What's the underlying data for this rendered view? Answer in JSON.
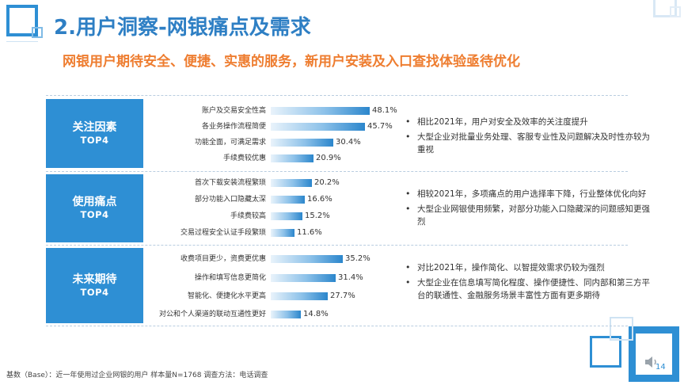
{
  "header": {
    "title": "2.用户洞察-网银痛点及需求",
    "subtitle": "网银用户期待安全、便捷、实惠的服务，新用户安装及入口查找体验亟待优化"
  },
  "sections": [
    {
      "title": "关注因素",
      "subtitle": "TOP4",
      "bars": [
        {
          "label": "账户及交易安全性高",
          "value": 48.1,
          "value_text": "48.1%"
        },
        {
          "label": "各业务操作流程简便",
          "value": 45.7,
          "value_text": "45.7%"
        },
        {
          "label": "功能全面，可满足需求",
          "value": 30.4,
          "value_text": "30.4%"
        },
        {
          "label": "手续费较优惠",
          "value": 20.9,
          "value_text": "20.9%"
        }
      ],
      "notes": [
        "相比2021年，用户对安全及效率的关注度提升",
        "大型企业对批量业务处理、客服专业性及问题解决及时性亦较为重视"
      ]
    },
    {
      "title": "使用痛点",
      "subtitle": "TOP4",
      "bars": [
        {
          "label": "首次下载安装流程繁琐",
          "value": 20.2,
          "value_text": "20.2%"
        },
        {
          "label": "部分功能入口隐藏太深",
          "value": 16.6,
          "value_text": "16.6%"
        },
        {
          "label": "手续费较高",
          "value": 15.2,
          "value_text": "15.2%"
        },
        {
          "label": "交易过程安全认证手段繁琐",
          "value": 11.6,
          "value_text": "11.6%"
        }
      ],
      "notes": [
        "相较2021年，多项痛点的用户选择率下降，行业整体优化向好",
        "大型企业网银使用频繁，对部分功能入口隐藏深的问题感知更强烈"
      ]
    },
    {
      "title": "未来期待",
      "subtitle": "TOP4",
      "bars": [
        {
          "label": "收费项目更少，资费更优惠",
          "value": 35.2,
          "value_text": "35.2%"
        },
        {
          "label": "操作和填写信息更简化",
          "value": 31.4,
          "value_text": "31.4%"
        },
        {
          "label": "智能化、便捷化水平更高",
          "value": 27.7,
          "value_text": "27.7%"
        },
        {
          "label": "对公和个人渠道的联动互通性更好",
          "value": 14.8,
          "value_text": "14.8%"
        }
      ],
      "notes": [
        "对比2021年，操作简化、以智提效需求仍较为强烈",
        "大型企业在信息填写简化程度、操作便捷性、同内部和第三方平台的联通性、金融服务场景丰富性方面有更多期待"
      ]
    }
  ],
  "footer": "基数（Base）：近一年使用过企业网银的用户 样本量N=1768 调查方法：电话调查",
  "page_number": "14",
  "colors": {
    "title_blue": "#2e7fc4",
    "subtitle_orange": "#ee7d30",
    "block_blue": "#2e8fd4",
    "bar_dark": "#2b86cc"
  },
  "icons": [
    "speaker-icon"
  ]
}
